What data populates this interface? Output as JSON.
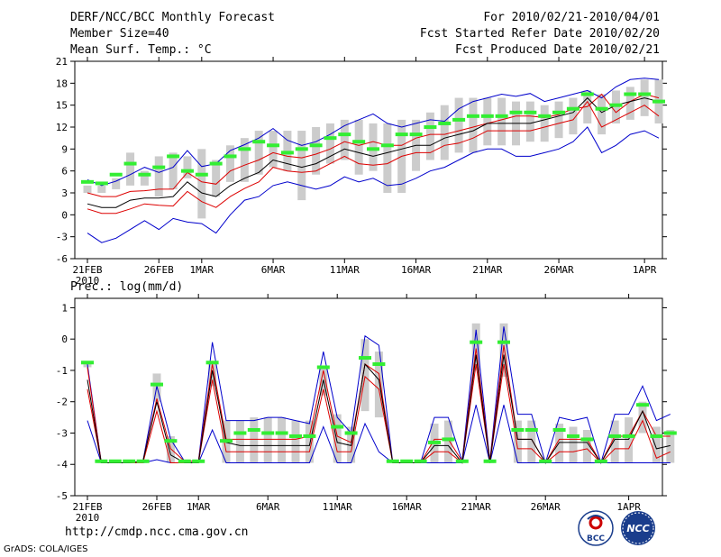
{
  "header": {
    "title": "DERF/NCC/BCC Monthly Forecast",
    "member_size": "Member Size=40",
    "variable": "Mean Surf. Temp.: °C",
    "for_range": "For 2010/02/21-2010/04/01",
    "started": "Fcst Started Refer Date 2010/02/20",
    "produced": "Fcst Produced Date 2010/02/21"
  },
  "footer": {
    "url": "http://cmdp.ncc.cma.gov.cn",
    "grads": "GrADS: COLA/IGES",
    "logo_bcc": "BCC",
    "logo_ncc": "NCC"
  },
  "colors": {
    "envelope": "#0000cc",
    "spread": "#dd0000",
    "mean": "#000000",
    "obs": "#33ee33",
    "box": "#cccccc"
  },
  "chart_data": [
    {
      "type": "line",
      "title": "Mean Surf. Temp.: °C",
      "xlabel_ticks": [
        "21FEB",
        "26FEB",
        "1MAR",
        "6MAR",
        "11MAR",
        "16MAR",
        "21MAR",
        "26MAR",
        "1APR"
      ],
      "xlabel_tick_index": [
        0,
        5,
        8,
        13,
        18,
        23,
        28,
        33,
        39
      ],
      "xlabel_year": "2010",
      "yticks": [
        "21",
        "18",
        "15",
        "12",
        "9",
        "6",
        "3",
        "0",
        "-3",
        "-6"
      ],
      "ylim": [
        -6,
        21
      ],
      "series": [
        {
          "name": "max",
          "values": [
            4.8,
            4.0,
            4.6,
            5.5,
            6.5,
            5.8,
            6.5,
            8.8,
            6.6,
            7.0,
            8.8,
            9.6,
            10.5,
            11.8,
            10.2,
            9.5,
            10.0,
            11.0,
            12.2,
            13.0,
            13.8,
            12.5,
            12.0,
            12.5,
            13.0,
            12.8,
            14.5,
            15.5,
            16.0,
            16.5,
            16.2,
            16.6,
            15.5,
            16.0,
            16.5,
            17.0,
            16.0,
            17.5,
            18.5,
            18.7,
            18.5
          ]
        },
        {
          "name": "upper",
          "values": [
            3.0,
            2.5,
            2.5,
            3.2,
            3.3,
            3.5,
            3.5,
            5.8,
            4.5,
            4.2,
            6.0,
            6.8,
            7.5,
            8.5,
            8.0,
            7.8,
            8.3,
            9.0,
            10.0,
            9.5,
            10.0,
            9.5,
            9.5,
            10.5,
            11.0,
            11.0,
            11.5,
            12.0,
            12.5,
            13.0,
            13.5,
            13.5,
            13.3,
            13.7,
            14.5,
            14.8,
            16.5,
            14.0,
            15.5,
            16.5,
            16.0
          ]
        },
        {
          "name": "mean",
          "values": [
            1.5,
            1.0,
            1.0,
            2.0,
            2.3,
            2.3,
            2.5,
            4.5,
            3.0,
            2.5,
            4.0,
            5.0,
            5.8,
            7.5,
            7.0,
            6.5,
            7.0,
            8.0,
            9.0,
            8.5,
            8.0,
            8.5,
            9.0,
            9.5,
            9.5,
            10.5,
            11.0,
            11.5,
            12.5,
            12.5,
            12.5,
            12.5,
            13.0,
            13.5,
            14.0,
            16.0,
            14.0,
            15.0,
            15.5,
            16.0,
            15.5
          ]
        },
        {
          "name": "lower",
          "values": [
            0.8,
            0.2,
            0.2,
            0.8,
            1.5,
            1.3,
            1.2,
            3.2,
            1.8,
            1.0,
            2.5,
            3.6,
            4.5,
            6.5,
            6.0,
            5.8,
            6.0,
            7.0,
            8.0,
            7.0,
            6.8,
            7.0,
            8.0,
            8.5,
            8.5,
            9.5,
            9.8,
            10.5,
            11.5,
            11.5,
            11.5,
            11.5,
            12.0,
            12.5,
            13.0,
            15.5,
            12.0,
            13.0,
            14.0,
            15.0,
            13.5
          ]
        },
        {
          "name": "min",
          "values": [
            -2.5,
            -3.8,
            -3.2,
            -2.0,
            -0.8,
            -2.0,
            -0.5,
            -1.0,
            -1.2,
            -2.5,
            0.0,
            2.0,
            2.5,
            4.0,
            4.5,
            4.0,
            3.5,
            4.0,
            5.2,
            4.5,
            5.0,
            4.0,
            4.2,
            5.0,
            6.0,
            6.5,
            7.5,
            8.5,
            9.0,
            9.0,
            8.0,
            8.0,
            8.5,
            9.0,
            10.0,
            12.0,
            8.5,
            9.5,
            11.0,
            11.5,
            10.5
          ]
        },
        {
          "name": "obs",
          "values": [
            4.5,
            4.3,
            5.5,
            7.0,
            5.5,
            6.5,
            8.0,
            6.0,
            5.5,
            7.0,
            8.0,
            9.0,
            10.0,
            9.5,
            8.5,
            9.0,
            9.5,
            10.5,
            11.0,
            10.0,
            9.0,
            9.5,
            11.0,
            11.0,
            12.0,
            12.5,
            13.0,
            13.5,
            13.5,
            13.5,
            14.0,
            14.0,
            13.5,
            14.0,
            14.5,
            16.5,
            14.5,
            15.0,
            16.5,
            16.5,
            15.5
          ]
        },
        {
          "name": "box_top",
          "values": [
            4.0,
            4.0,
            5.0,
            8.5,
            6.0,
            8.0,
            8.5,
            8.0,
            9.0,
            7.5,
            9.5,
            10.5,
            11.5,
            11.5,
            11.5,
            11.5,
            12.0,
            12.5,
            13.0,
            13.0,
            12.5,
            12.5,
            13.0,
            13.0,
            14.0,
            15.0,
            16.0,
            16.0,
            16.0,
            16.0,
            15.5,
            15.5,
            15.0,
            15.5,
            16.0,
            17.0,
            16.5,
            17.0,
            17.5,
            18.5,
            18.5
          ]
        },
        {
          "name": "box_bottom",
          "values": [
            3.0,
            3.0,
            3.5,
            4.0,
            4.0,
            2.5,
            3.5,
            5.0,
            -0.5,
            2.5,
            4.5,
            4.5,
            5.5,
            6.5,
            6.0,
            2.0,
            5.5,
            7.0,
            7.5,
            5.5,
            6.0,
            3.0,
            3.0,
            6.0,
            7.5,
            7.5,
            8.5,
            8.5,
            9.5,
            9.5,
            9.5,
            10.0,
            10.0,
            10.5,
            11.0,
            12.5,
            11.0,
            12.5,
            13.0,
            13.5,
            12.5
          ]
        }
      ]
    },
    {
      "type": "line",
      "title": "Prec.: log(mm/d)",
      "xlabel_ticks": [
        "21FEB",
        "26FEB",
        "1MAR",
        "6MAR",
        "11MAR",
        "16MAR",
        "21MAR",
        "26MAR",
        "1APR"
      ],
      "xlabel_tick_index": [
        0,
        5,
        8,
        13,
        18,
        23,
        28,
        33,
        39
      ],
      "xlabel_year": "2010",
      "yticks": [
        "1",
        "0",
        "-1",
        "-2",
        "-3",
        "-4",
        "-5"
      ],
      "ylim": [
        -5,
        1.3
      ],
      "series": [
        {
          "name": "max",
          "values": [
            -0.8,
            -3.95,
            -3.95,
            -3.95,
            -3.9,
            -1.5,
            -3.2,
            -3.9,
            -3.9,
            -0.1,
            -2.6,
            -2.6,
            -2.6,
            -2.5,
            -2.5,
            -2.6,
            -2.7,
            -0.4,
            -2.5,
            -3.0,
            0.1,
            -0.2,
            -3.95,
            -3.95,
            -3.95,
            -2.5,
            -2.5,
            -3.9,
            0.3,
            -3.9,
            0.4,
            -2.4,
            -2.4,
            -3.95,
            -2.5,
            -2.6,
            -2.5,
            -3.95,
            -2.4,
            -2.4,
            -1.5,
            -2.6,
            -2.4
          ]
        },
        {
          "name": "upper",
          "values": [
            -0.9,
            -3.95,
            -3.95,
            -3.95,
            -3.9,
            -1.9,
            -3.5,
            -3.9,
            -3.9,
            -0.8,
            -3.2,
            -3.2,
            -3.2,
            -3.2,
            -3.2,
            -3.2,
            -3.1,
            -1.0,
            -3.1,
            -3.3,
            -0.8,
            -1.1,
            -3.95,
            -3.95,
            -3.95,
            -3.2,
            -3.2,
            -3.9,
            -0.3,
            -3.9,
            -0.2,
            -3.2,
            -3.2,
            -3.95,
            -3.2,
            -3.2,
            -3.2,
            -3.95,
            -3.1,
            -3.1,
            -2.3,
            -3.1,
            -3.1
          ]
        },
        {
          "name": "mean",
          "values": [
            -1.3,
            -3.95,
            -3.95,
            -3.95,
            -3.9,
            -2.0,
            -3.7,
            -3.95,
            -3.95,
            -1.0,
            -3.3,
            -3.4,
            -3.4,
            -3.4,
            -3.4,
            -3.4,
            -3.4,
            -1.3,
            -3.3,
            -3.4,
            -0.8,
            -1.3,
            -3.95,
            -3.95,
            -3.95,
            -3.4,
            -3.4,
            -3.95,
            -0.5,
            -3.95,
            -0.5,
            -3.2,
            -3.2,
            -3.95,
            -3.3,
            -3.3,
            -3.3,
            -3.95,
            -3.2,
            -3.2,
            -2.3,
            -3.5,
            -3.4
          ]
        },
        {
          "name": "lower",
          "values": [
            -1.6,
            -3.95,
            -3.95,
            -3.95,
            -3.95,
            -2.3,
            -3.95,
            -3.95,
            -3.95,
            -1.3,
            -3.6,
            -3.6,
            -3.6,
            -3.6,
            -3.6,
            -3.6,
            -3.6,
            -1.6,
            -3.6,
            -3.6,
            -1.2,
            -1.6,
            -3.95,
            -3.95,
            -3.95,
            -3.6,
            -3.6,
            -3.95,
            -0.8,
            -3.95,
            -0.8,
            -3.5,
            -3.5,
            -3.95,
            -3.6,
            -3.6,
            -3.5,
            -3.95,
            -3.5,
            -3.5,
            -2.6,
            -3.8,
            -3.6
          ]
        },
        {
          "name": "min",
          "values": [
            -2.6,
            -3.95,
            -3.95,
            -3.95,
            -3.95,
            -3.85,
            -3.95,
            -3.95,
            -3.95,
            -2.9,
            -3.95,
            -3.95,
            -3.95,
            -3.95,
            -3.95,
            -3.95,
            -3.95,
            -2.8,
            -3.95,
            -3.95,
            -2.7,
            -3.6,
            -3.95,
            -3.95,
            -3.95,
            -3.95,
            -3.95,
            -3.95,
            -2.1,
            -3.95,
            -2.1,
            -3.95,
            -3.95,
            -3.95,
            -3.95,
            -3.95,
            -3.95,
            -3.95,
            -3.95,
            -3.95,
            -3.95,
            -3.95,
            -3.95
          ]
        },
        {
          "name": "obs",
          "values": [
            -0.75,
            -3.9,
            -3.9,
            -3.9,
            -3.9,
            -1.45,
            -3.25,
            -3.9,
            -3.9,
            -0.75,
            -3.25,
            -3.0,
            -2.9,
            -3.0,
            -3.0,
            -3.1,
            -3.1,
            -0.9,
            -2.8,
            -3.0,
            -0.6,
            -0.8,
            -3.9,
            -3.9,
            -3.9,
            -3.3,
            -3.2,
            -3.9,
            -0.1,
            -3.9,
            -0.1,
            -2.9,
            -2.9,
            -3.9,
            -2.9,
            -3.1,
            -3.2,
            -3.9,
            -3.1,
            -3.1,
            -2.1,
            -3.1,
            -3.0
          ]
        },
        {
          "name": "box_top",
          "values": [
            -0.8,
            -3.9,
            -3.9,
            -3.9,
            -3.9,
            -1.1,
            -3.1,
            -3.9,
            -3.9,
            -0.7,
            -2.6,
            -2.6,
            -2.5,
            -2.5,
            -2.5,
            -2.6,
            -2.6,
            -0.9,
            -2.4,
            -2.8,
            0.0,
            -0.4,
            -3.9,
            -3.9,
            -3.9,
            -2.7,
            -2.6,
            -3.9,
            0.5,
            -3.9,
            0.5,
            -2.6,
            -2.6,
            -3.9,
            -2.7,
            -2.8,
            -2.9,
            -3.9,
            -2.6,
            -2.5,
            -2.0,
            -2.8,
            -2.9
          ]
        },
        {
          "name": "box_bottom",
          "values": [
            -0.9,
            -3.95,
            -3.95,
            -3.95,
            -3.95,
            -2.0,
            -3.95,
            -3.95,
            -3.95,
            -1.5,
            -3.95,
            -3.95,
            -3.95,
            -3.95,
            -3.95,
            -3.95,
            -3.95,
            -1.8,
            -3.95,
            -3.95,
            -2.3,
            -2.5,
            -3.95,
            -3.95,
            -3.95,
            -3.95,
            -3.95,
            -3.95,
            -1.0,
            -3.95,
            -1.2,
            -3.95,
            -3.95,
            -3.95,
            -3.95,
            -3.95,
            -3.95,
            -3.95,
            -3.95,
            -3.95,
            -3.0,
            -3.95,
            -3.95
          ]
        }
      ]
    }
  ]
}
